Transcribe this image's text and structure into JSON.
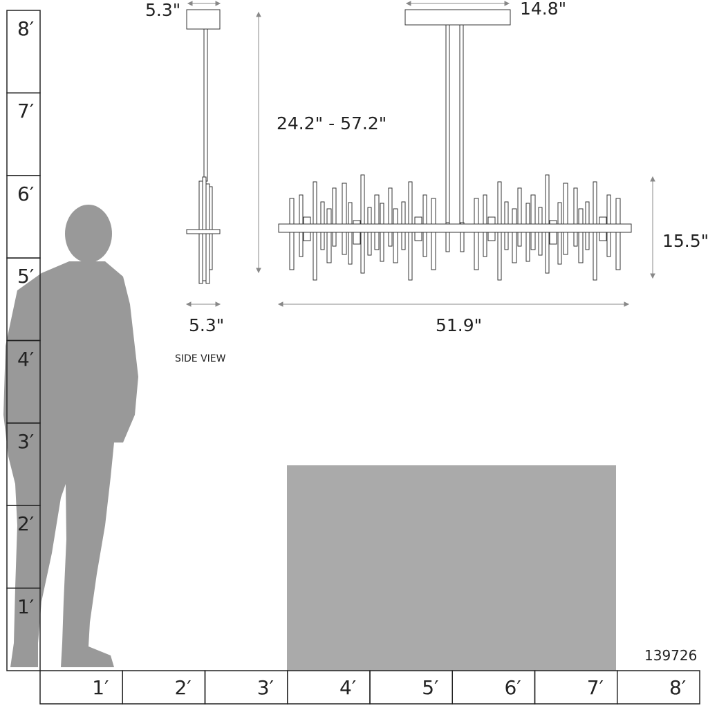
{
  "ruler_vertical": {
    "labels": [
      "8′",
      "7′",
      "6′",
      "5′",
      "4′",
      "3′",
      "2′",
      "1′"
    ]
  },
  "ruler_horizontal": {
    "labels": [
      "1′",
      "2′",
      "3′",
      "4′",
      "5′",
      "6′",
      "7′",
      "8′"
    ]
  },
  "dimensions": {
    "side_canopy_width": "5.3\"",
    "front_canopy_width": "14.8\"",
    "overall_height": "24.2\" - 57.2\"",
    "fixture_height": "15.5\"",
    "side_width": "5.3\"",
    "fixture_width": "51.9\""
  },
  "side_view_label": "SIDE VIEW",
  "model_number": "139726",
  "colors": {
    "silhouette": "#999999",
    "table": "#aaaaaa",
    "line": "#333333",
    "dimension": "#888888"
  }
}
